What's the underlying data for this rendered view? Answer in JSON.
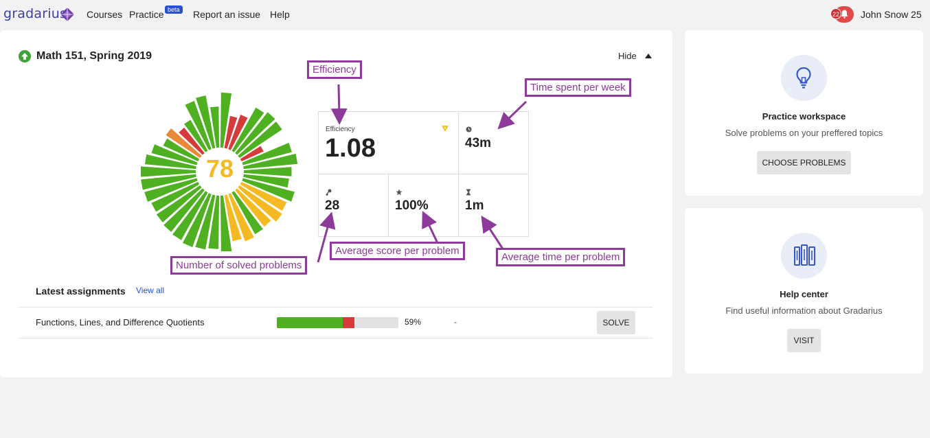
{
  "nav": {
    "logo": "gradarius",
    "links": [
      "Courses",
      "Practice",
      "Report an issue",
      "Help"
    ],
    "beta_badge": "beta",
    "notification_count": "22",
    "user_name": "John Snow 25"
  },
  "course": {
    "title": "Math 151, Spring 2019",
    "hide_label": "Hide",
    "score": "78"
  },
  "stats": {
    "efficiency_label": "Efficiency",
    "efficiency_value": "1.08",
    "time_per_week": "43m",
    "solved_problems": "28",
    "average_score": "100%",
    "average_time": "1m"
  },
  "annotations": {
    "efficiency": "Efficiency",
    "time_per_week": "Time spent per week",
    "solved": "Number of solved problems",
    "avg_score": "Average score per problem",
    "avg_time": "Average time per problem"
  },
  "latest": {
    "title": "Latest assignments",
    "view_all": "View all",
    "assignments": [
      {
        "name": "Functions, Lines, and Difference Quotients",
        "green_fraction": 0.54,
        "red_fraction": 0.1,
        "percent": "59%",
        "due": "-",
        "action": "SOLVE"
      }
    ]
  },
  "side": {
    "practice": {
      "title": "Practice workspace",
      "text": "Solve problems on your preffered topics",
      "button": "CHOOSE PROBLEMS"
    },
    "help": {
      "title": "Help center",
      "text": "Find useful information about Gradarius",
      "button": "VISIT"
    }
  },
  "colors": {
    "brand": "#3b3fa0",
    "green": "#4fb021",
    "red": "#d63a3a",
    "yellow": "#f5b921",
    "orange": "#e8893a",
    "annotation": "#8e3a9a"
  },
  "radial_segments": [
    {
      "length": 0.95,
      "color": "green"
    },
    {
      "length": 0.55,
      "color": "red"
    },
    {
      "length": 0.62,
      "color": "red"
    },
    {
      "length": 0.85,
      "color": "green"
    },
    {
      "length": 0.9,
      "color": "green"
    },
    {
      "length": 0.88,
      "color": "green"
    },
    {
      "length": 0.4,
      "color": "red"
    },
    {
      "length": 0.87,
      "color": "green"
    },
    {
      "length": 0.93,
      "color": "green"
    },
    {
      "length": 0.82,
      "color": "green"
    },
    {
      "length": 0.78,
      "color": "green"
    },
    {
      "length": 0.92,
      "color": "green"
    },
    {
      "length": 0.85,
      "color": "yellow"
    },
    {
      "length": 0.88,
      "color": "yellow"
    },
    {
      "length": 0.8,
      "color": "yellow"
    },
    {
      "length": 0.82,
      "color": "green"
    },
    {
      "length": 0.86,
      "color": "yellow"
    },
    {
      "length": 0.8,
      "color": "yellow"
    },
    {
      "length": 0.98,
      "color": "green"
    },
    {
      "length": 0.92,
      "color": "green"
    },
    {
      "length": 0.95,
      "color": "green"
    },
    {
      "length": 0.97,
      "color": "green"
    },
    {
      "length": 0.94,
      "color": "green"
    },
    {
      "length": 0.92,
      "color": "green"
    },
    {
      "length": 0.9,
      "color": "green"
    },
    {
      "length": 0.88,
      "color": "green"
    },
    {
      "length": 0.93,
      "color": "green"
    },
    {
      "length": 0.95,
      "color": "green"
    },
    {
      "length": 0.97,
      "color": "green"
    },
    {
      "length": 0.88,
      "color": "green"
    },
    {
      "length": 0.8,
      "color": "green"
    },
    {
      "length": 0.65,
      "color": "green"
    },
    {
      "length": 0.7,
      "color": "orange"
    },
    {
      "length": 0.55,
      "color": "red"
    },
    {
      "length": 0.6,
      "color": "green"
    },
    {
      "length": 0.88,
      "color": "green"
    },
    {
      "length": 0.92,
      "color": "green"
    },
    {
      "length": 0.7,
      "color": "green"
    }
  ]
}
